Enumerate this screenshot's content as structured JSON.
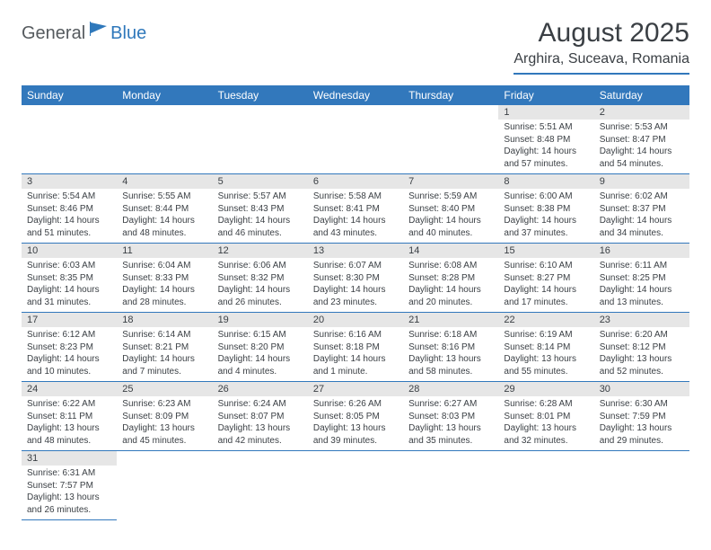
{
  "logo": {
    "text1": "General",
    "text2": "Blue"
  },
  "title": "August 2025",
  "location": "Arghira, Suceava, Romania",
  "colors": {
    "header_bg": "#3278bc",
    "header_text": "#ffffff",
    "daynum_bg": "#e6e6e6",
    "text": "#3a3f44",
    "rule": "#3278bc",
    "logo_gray": "#555a5e",
    "logo_blue": "#2f78bb",
    "page_bg": "#ffffff"
  },
  "typography": {
    "title_fontsize": 30,
    "location_fontsize": 16,
    "dayhead_fontsize": 12,
    "daynum_fontsize": 11,
    "body_fontsize": 10
  },
  "calendar": {
    "day_headers": [
      "Sunday",
      "Monday",
      "Tuesday",
      "Wednesday",
      "Thursday",
      "Friday",
      "Saturday"
    ],
    "first_weekday_index": 5,
    "weeks": [
      [
        null,
        null,
        null,
        null,
        null,
        {
          "n": "1",
          "sunrise": "Sunrise: 5:51 AM",
          "sunset": "Sunset: 8:48 PM",
          "daylight": "Daylight: 14 hours and 57 minutes."
        },
        {
          "n": "2",
          "sunrise": "Sunrise: 5:53 AM",
          "sunset": "Sunset: 8:47 PM",
          "daylight": "Daylight: 14 hours and 54 minutes."
        }
      ],
      [
        {
          "n": "3",
          "sunrise": "Sunrise: 5:54 AM",
          "sunset": "Sunset: 8:46 PM",
          "daylight": "Daylight: 14 hours and 51 minutes."
        },
        {
          "n": "4",
          "sunrise": "Sunrise: 5:55 AM",
          "sunset": "Sunset: 8:44 PM",
          "daylight": "Daylight: 14 hours and 48 minutes."
        },
        {
          "n": "5",
          "sunrise": "Sunrise: 5:57 AM",
          "sunset": "Sunset: 8:43 PM",
          "daylight": "Daylight: 14 hours and 46 minutes."
        },
        {
          "n": "6",
          "sunrise": "Sunrise: 5:58 AM",
          "sunset": "Sunset: 8:41 PM",
          "daylight": "Daylight: 14 hours and 43 minutes."
        },
        {
          "n": "7",
          "sunrise": "Sunrise: 5:59 AM",
          "sunset": "Sunset: 8:40 PM",
          "daylight": "Daylight: 14 hours and 40 minutes."
        },
        {
          "n": "8",
          "sunrise": "Sunrise: 6:00 AM",
          "sunset": "Sunset: 8:38 PM",
          "daylight": "Daylight: 14 hours and 37 minutes."
        },
        {
          "n": "9",
          "sunrise": "Sunrise: 6:02 AM",
          "sunset": "Sunset: 8:37 PM",
          "daylight": "Daylight: 14 hours and 34 minutes."
        }
      ],
      [
        {
          "n": "10",
          "sunrise": "Sunrise: 6:03 AM",
          "sunset": "Sunset: 8:35 PM",
          "daylight": "Daylight: 14 hours and 31 minutes."
        },
        {
          "n": "11",
          "sunrise": "Sunrise: 6:04 AM",
          "sunset": "Sunset: 8:33 PM",
          "daylight": "Daylight: 14 hours and 28 minutes."
        },
        {
          "n": "12",
          "sunrise": "Sunrise: 6:06 AM",
          "sunset": "Sunset: 8:32 PM",
          "daylight": "Daylight: 14 hours and 26 minutes."
        },
        {
          "n": "13",
          "sunrise": "Sunrise: 6:07 AM",
          "sunset": "Sunset: 8:30 PM",
          "daylight": "Daylight: 14 hours and 23 minutes."
        },
        {
          "n": "14",
          "sunrise": "Sunrise: 6:08 AM",
          "sunset": "Sunset: 8:28 PM",
          "daylight": "Daylight: 14 hours and 20 minutes."
        },
        {
          "n": "15",
          "sunrise": "Sunrise: 6:10 AM",
          "sunset": "Sunset: 8:27 PM",
          "daylight": "Daylight: 14 hours and 17 minutes."
        },
        {
          "n": "16",
          "sunrise": "Sunrise: 6:11 AM",
          "sunset": "Sunset: 8:25 PM",
          "daylight": "Daylight: 14 hours and 13 minutes."
        }
      ],
      [
        {
          "n": "17",
          "sunrise": "Sunrise: 6:12 AM",
          "sunset": "Sunset: 8:23 PM",
          "daylight": "Daylight: 14 hours and 10 minutes."
        },
        {
          "n": "18",
          "sunrise": "Sunrise: 6:14 AM",
          "sunset": "Sunset: 8:21 PM",
          "daylight": "Daylight: 14 hours and 7 minutes."
        },
        {
          "n": "19",
          "sunrise": "Sunrise: 6:15 AM",
          "sunset": "Sunset: 8:20 PM",
          "daylight": "Daylight: 14 hours and 4 minutes."
        },
        {
          "n": "20",
          "sunrise": "Sunrise: 6:16 AM",
          "sunset": "Sunset: 8:18 PM",
          "daylight": "Daylight: 14 hours and 1 minute."
        },
        {
          "n": "21",
          "sunrise": "Sunrise: 6:18 AM",
          "sunset": "Sunset: 8:16 PM",
          "daylight": "Daylight: 13 hours and 58 minutes."
        },
        {
          "n": "22",
          "sunrise": "Sunrise: 6:19 AM",
          "sunset": "Sunset: 8:14 PM",
          "daylight": "Daylight: 13 hours and 55 minutes."
        },
        {
          "n": "23",
          "sunrise": "Sunrise: 6:20 AM",
          "sunset": "Sunset: 8:12 PM",
          "daylight": "Daylight: 13 hours and 52 minutes."
        }
      ],
      [
        {
          "n": "24",
          "sunrise": "Sunrise: 6:22 AM",
          "sunset": "Sunset: 8:11 PM",
          "daylight": "Daylight: 13 hours and 48 minutes."
        },
        {
          "n": "25",
          "sunrise": "Sunrise: 6:23 AM",
          "sunset": "Sunset: 8:09 PM",
          "daylight": "Daylight: 13 hours and 45 minutes."
        },
        {
          "n": "26",
          "sunrise": "Sunrise: 6:24 AM",
          "sunset": "Sunset: 8:07 PM",
          "daylight": "Daylight: 13 hours and 42 minutes."
        },
        {
          "n": "27",
          "sunrise": "Sunrise: 6:26 AM",
          "sunset": "Sunset: 8:05 PM",
          "daylight": "Daylight: 13 hours and 39 minutes."
        },
        {
          "n": "28",
          "sunrise": "Sunrise: 6:27 AM",
          "sunset": "Sunset: 8:03 PM",
          "daylight": "Daylight: 13 hours and 35 minutes."
        },
        {
          "n": "29",
          "sunrise": "Sunrise: 6:28 AM",
          "sunset": "Sunset: 8:01 PM",
          "daylight": "Daylight: 13 hours and 32 minutes."
        },
        {
          "n": "30",
          "sunrise": "Sunrise: 6:30 AM",
          "sunset": "Sunset: 7:59 PM",
          "daylight": "Daylight: 13 hours and 29 minutes."
        }
      ],
      [
        {
          "n": "31",
          "sunrise": "Sunrise: 6:31 AM",
          "sunset": "Sunset: 7:57 PM",
          "daylight": "Daylight: 13 hours and 26 minutes."
        },
        null,
        null,
        null,
        null,
        null,
        null
      ]
    ]
  }
}
